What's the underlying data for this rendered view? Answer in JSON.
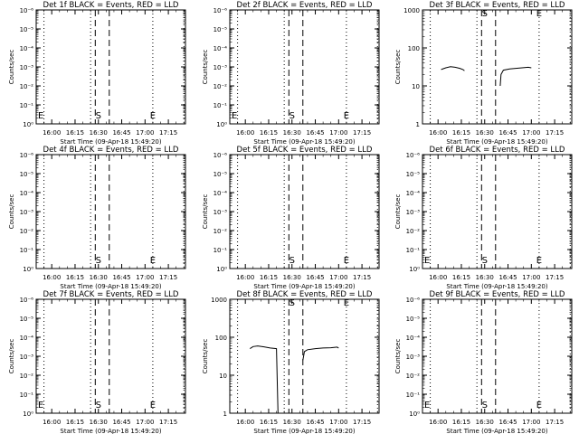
{
  "chart_data": [
    {
      "type": "line",
      "title": "Det 1f BLACK = Events, RED = LLD",
      "xlabel": "Start Time (09-Apr-18 15:49:20)",
      "ylabel": "Counts/sec",
      "yscale": "log",
      "ylim": [
        1,
        10000
      ],
      "y_tick_labels": [
        "10⁰",
        "10⁻¹",
        "10⁻²",
        "10⁻³",
        "10⁻⁴",
        "10⁻⁵",
        "10⁻⁶"
      ],
      "x_tick_labels": [
        "16:00",
        "16:15",
        "16:30",
        "16:45",
        "17:00",
        "17:15"
      ],
      "dotted_lines": [
        "15:55",
        "16:25",
        "17:05",
        "17:25"
      ],
      "dashed_lines": [
        "16:28",
        "16:37"
      ],
      "markers": [
        {
          "label": "E",
          "x": "15:53"
        },
        {
          "label": "S",
          "x": "16:30"
        },
        {
          "label": "E",
          "x": "17:05"
        }
      ],
      "series": []
    },
    {
      "type": "line",
      "title": "Det 2f BLACK = Events, RED = LLD",
      "xlabel": "Start Time (09-Apr-18 15:49:20)",
      "ylabel": "Counts/sec",
      "yscale": "log",
      "ylim": [
        1,
        10000
      ],
      "y_tick_labels": [
        "10⁰",
        "10⁻¹",
        "10⁻²",
        "10⁻³",
        "10⁻⁴",
        "10⁻⁵",
        "10⁻⁶"
      ],
      "x_tick_labels": [
        "16:00",
        "16:15",
        "16:30",
        "16:45",
        "17:00",
        "17:15"
      ],
      "dotted_lines": [
        "15:55",
        "16:25",
        "17:05",
        "17:25"
      ],
      "dashed_lines": [
        "16:28",
        "16:37"
      ],
      "markers": [
        {
          "label": "E",
          "x": "15:53"
        },
        {
          "label": "S",
          "x": "16:30"
        },
        {
          "label": "E",
          "x": "17:05"
        }
      ],
      "series": []
    },
    {
      "type": "line",
      "title": "Det 3f BLACK = Events, RED = LLD",
      "xlabel": "Start Time (09-Apr-18 15:49:20)",
      "ylabel": "Counts/sec",
      "yscale": "log",
      "ylim": [
        1,
        1000
      ],
      "y_tick_labels": [
        "1",
        "10",
        "100",
        "1000"
      ],
      "x_tick_labels": [
        "16:00",
        "16:15",
        "16:30",
        "16:45",
        "17:00",
        "17:15"
      ],
      "dotted_lines": [
        "15:55",
        "16:25",
        "17:05",
        "17:25"
      ],
      "dashed_lines": [
        "16:28",
        "16:37"
      ],
      "markers": [
        {
          "label": "S",
          "x": "16:30"
        },
        {
          "label": "E",
          "x": "17:05"
        }
      ],
      "series": [
        {
          "points": [
            [
              "16:02",
              27
            ],
            [
              "16:05",
              30
            ],
            [
              "16:08",
              32
            ],
            [
              "16:11",
              31
            ],
            [
              "16:14",
              29
            ],
            [
              "16:16",
              27
            ],
            [
              "16:17",
              25
            ]
          ]
        },
        {
          "points": [
            [
              "16:40",
              10
            ],
            [
              "16:40.5",
              20
            ],
            [
              "16:42",
              26
            ],
            [
              "16:46",
              28
            ],
            [
              "16:50",
              29
            ],
            [
              "16:54",
              30
            ],
            [
              "16:58",
              31
            ],
            [
              "17:00",
              30
            ]
          ]
        }
      ]
    },
    {
      "type": "line",
      "title": "Det 4f BLACK = Events, RED = LLD",
      "xlabel": "Start Time (09-Apr-18 15:49:20)",
      "ylabel": "Counts/sec",
      "yscale": "log",
      "ylim": [
        1,
        10000
      ],
      "y_tick_labels": [
        "10⁰",
        "10⁻¹",
        "10⁻²",
        "10⁻³",
        "10⁻⁴",
        "10⁻⁵",
        "10⁻⁶"
      ],
      "x_tick_labels": [
        "16:00",
        "16:15",
        "16:30",
        "16:45",
        "17:00",
        "17:15"
      ],
      "dotted_lines": [
        "15:55",
        "16:25",
        "17:05",
        "17:25"
      ],
      "dashed_lines": [
        "16:28",
        "16:37"
      ],
      "markers": [
        {
          "label": "S",
          "x": "16:30"
        },
        {
          "label": "E",
          "x": "17:05"
        }
      ],
      "series": []
    },
    {
      "type": "line",
      "title": "Det 5f BLACK = Events, RED = LLD",
      "xlabel": "Start Time (09-Apr-18 15:49:20)",
      "ylabel": "Counts/sec",
      "yscale": "log",
      "ylim": [
        1,
        10000
      ],
      "y_tick_labels": [
        "10⁰",
        "10⁻¹",
        "10⁻²",
        "10⁻³",
        "10⁻⁴",
        "10⁻⁵",
        "10⁻⁶"
      ],
      "x_tick_labels": [
        "16:00",
        "16:15",
        "16:30",
        "16:45",
        "17:00",
        "17:15"
      ],
      "dotted_lines": [
        "15:55",
        "16:25",
        "17:05",
        "17:25"
      ],
      "dashed_lines": [
        "16:28",
        "16:37"
      ],
      "markers": [
        {
          "label": "S",
          "x": "16:30"
        },
        {
          "label": "E",
          "x": "17:05"
        }
      ],
      "series": []
    },
    {
      "type": "line",
      "title": "Det 6f BLACK = Events, RED = LLD",
      "xlabel": "Start Time (09-Apr-18 15:49:20)",
      "ylabel": "Counts/sec",
      "yscale": "log",
      "ylim": [
        1,
        10000
      ],
      "y_tick_labels": [
        "10⁰",
        "10⁻¹",
        "10⁻²",
        "10⁻³",
        "10⁻⁴",
        "10⁻⁵",
        "10⁻⁶"
      ],
      "x_tick_labels": [
        "16:00",
        "16:15",
        "16:30",
        "16:45",
        "17:00",
        "17:15"
      ],
      "dotted_lines": [
        "15:55",
        "16:25",
        "17:05",
        "17:25"
      ],
      "dashed_lines": [
        "16:28",
        "16:37"
      ],
      "markers": [
        {
          "label": "E",
          "x": "15:53"
        },
        {
          "label": "S",
          "x": "16:30"
        },
        {
          "label": "E",
          "x": "17:05"
        }
      ],
      "series": []
    },
    {
      "type": "line",
      "title": "Det 7f BLACK = Events, RED = LLD",
      "xlabel": "Start Time (09-Apr-18 15:49:20)",
      "ylabel": "Counts/sec",
      "yscale": "log",
      "ylim": [
        1,
        10000
      ],
      "y_tick_labels": [
        "10⁰",
        "10⁻¹",
        "10⁻²",
        "10⁻³",
        "10⁻⁴",
        "10⁻⁵",
        "10⁻⁶"
      ],
      "x_tick_labels": [
        "16:00",
        "16:15",
        "16:30",
        "16:45",
        "17:00",
        "17:15"
      ],
      "dotted_lines": [
        "15:55",
        "16:25",
        "17:05",
        "17:25"
      ],
      "dashed_lines": [
        "16:28",
        "16:37"
      ],
      "markers": [
        {
          "label": "E",
          "x": "15:53"
        },
        {
          "label": "S",
          "x": "16:30"
        },
        {
          "label": "E",
          "x": "17:05"
        }
      ],
      "series": []
    },
    {
      "type": "line",
      "title": "Det 8f BLACK = Events, RED = LLD",
      "xlabel": "Start Time (09-Apr-18 15:49:20)",
      "ylabel": "Counts/sec",
      "yscale": "log",
      "ylim": [
        1,
        1000
      ],
      "y_tick_labels": [
        "1",
        "10",
        "100",
        "1000"
      ],
      "x_tick_labels": [
        "16:00",
        "16:15",
        "16:30",
        "16:45",
        "17:00",
        "17:15"
      ],
      "dotted_lines": [
        "15:55",
        "16:25",
        "17:05",
        "17:25"
      ],
      "dashed_lines": [
        "16:28",
        "16:37"
      ],
      "markers": [
        {
          "label": "S",
          "x": "16:30"
        },
        {
          "label": "E",
          "x": "17:05"
        }
      ],
      "series": [
        {
          "points": [
            [
              "16:03",
              50
            ],
            [
              "16:05",
              57
            ],
            [
              "16:08",
              59
            ],
            [
              "16:12",
              56
            ],
            [
              "16:16",
              52
            ],
            [
              "16:20",
              50
            ],
            [
              "16:21",
              1
            ]
          ]
        },
        {
          "points": [
            [
              "16:37",
              25
            ],
            [
              "16:38",
              42
            ],
            [
              "16:40",
              47
            ],
            [
              "16:45",
              50
            ],
            [
              "16:50",
              52
            ],
            [
              "16:55",
              53
            ],
            [
              "16:59",
              55
            ],
            [
              "17:00",
              52
            ]
          ]
        }
      ]
    },
    {
      "type": "line",
      "title": "Det 9f BLACK = Events, RED = LLD",
      "xlabel": "Start Time (09-Apr-18 15:49:20)",
      "ylabel": "Counts/sec",
      "yscale": "log",
      "ylim": [
        1,
        10000
      ],
      "y_tick_labels": [
        "10⁰",
        "10⁻¹",
        "10⁻²",
        "10⁻³",
        "10⁻⁴",
        "10⁻⁵",
        "10⁻⁶"
      ],
      "x_tick_labels": [
        "16:00",
        "16:15",
        "16:30",
        "16:45",
        "17:00",
        "17:15"
      ],
      "dotted_lines": [
        "15:55",
        "16:25",
        "17:05",
        "17:25"
      ],
      "dashed_lines": [
        "16:28",
        "16:37"
      ],
      "markers": [
        {
          "label": "E",
          "x": "15:53"
        },
        {
          "label": "S",
          "x": "16:30"
        },
        {
          "label": "E",
          "x": "17:05"
        }
      ],
      "series": []
    }
  ],
  "colors": {
    "background": "#ffffff",
    "axes": "#000000",
    "series": "#000000"
  }
}
